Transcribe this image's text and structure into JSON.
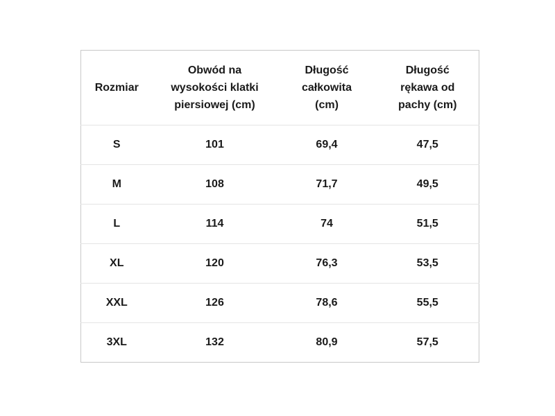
{
  "table": {
    "headers": [
      {
        "lines": [
          "Rozmiar"
        ]
      },
      {
        "lines": [
          "Obwód na",
          "wysokości klatki",
          "piersiowej (cm)"
        ]
      },
      {
        "lines": [
          "Długość",
          "całkowita",
          "(cm)"
        ]
      },
      {
        "lines": [
          "Długość",
          "rękawa od",
          "pachy (cm)"
        ]
      }
    ],
    "rows": [
      [
        "S",
        "101",
        "69,4",
        "47,5"
      ],
      [
        "M",
        "108",
        "71,7",
        "49,5"
      ],
      [
        "L",
        "114",
        "74",
        "51,5"
      ],
      [
        "XL",
        "120",
        "76,3",
        "53,5"
      ],
      [
        "XXL",
        "126",
        "78,6",
        "55,5"
      ],
      [
        "3XL",
        "132",
        "80,9",
        "57,5"
      ]
    ]
  }
}
